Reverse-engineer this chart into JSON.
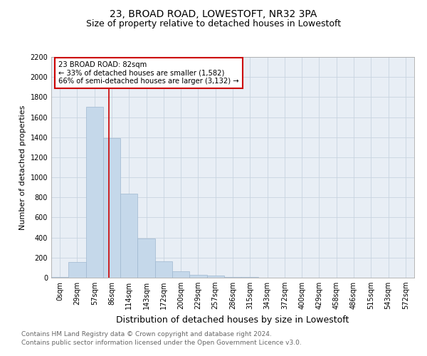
{
  "title": "23, BROAD ROAD, LOWESTOFT, NR32 3PA",
  "subtitle": "Size of property relative to detached houses in Lowestoft",
  "xlabel": "Distribution of detached houses by size in Lowestoft",
  "ylabel": "Number of detached properties",
  "footnote1": "Contains HM Land Registry data © Crown copyright and database right 2024.",
  "footnote2": "Contains public sector information licensed under the Open Government Licence v3.0.",
  "bar_labels": [
    "0sqm",
    "29sqm",
    "57sqm",
    "86sqm",
    "114sqm",
    "143sqm",
    "172sqm",
    "200sqm",
    "229sqm",
    "257sqm",
    "286sqm",
    "315sqm",
    "343sqm",
    "372sqm",
    "400sqm",
    "429sqm",
    "458sqm",
    "486sqm",
    "515sqm",
    "543sqm",
    "572sqm"
  ],
  "bar_values": [
    5,
    155,
    1700,
    1390,
    835,
    390,
    165,
    65,
    25,
    20,
    10,
    10,
    0,
    0,
    0,
    0,
    0,
    0,
    0,
    0,
    0
  ],
  "bar_color": "#c5d8ea",
  "bar_edge_color": "#9fb8d0",
  "vline_x": 2.85,
  "vline_color": "#cc0000",
  "ylim": [
    0,
    2200
  ],
  "yticks": [
    0,
    200,
    400,
    600,
    800,
    1000,
    1200,
    1400,
    1600,
    1800,
    2000,
    2200
  ],
  "annotation_text": "23 BROAD ROAD: 82sqm\n← 33% of detached houses are smaller (1,582)\n66% of semi-detached houses are larger (3,132) →",
  "annotation_box_color": "#ffffff",
  "annotation_box_edge": "#cc0000",
  "grid_color": "#c8d4e0",
  "bg_color": "#ffffff",
  "plot_bg_color": "#e8eef5",
  "title_fontsize": 10,
  "subtitle_fontsize": 9,
  "ylabel_fontsize": 8,
  "xlabel_fontsize": 9,
  "footnote_fontsize": 6.5,
  "footnote_color": "#666666",
  "tick_fontsize": 7
}
